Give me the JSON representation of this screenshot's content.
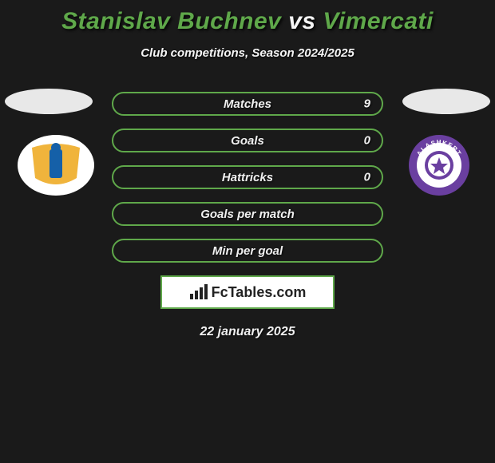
{
  "title": {
    "player1": "Stanislav Buchnev",
    "vs": "vs",
    "player2": "Vimercati",
    "color_player1": "#5fa84a",
    "color_vs": "#f5f5f5",
    "color_player2": "#5fa84a",
    "fontsize": 30
  },
  "subtitle": "Club competitions, Season 2024/2025",
  "stats": {
    "border_color": "#5fa84a",
    "rows": [
      {
        "label": "Matches",
        "left": "",
        "right": "9"
      },
      {
        "label": "Goals",
        "left": "",
        "right": "0"
      },
      {
        "label": "Hattricks",
        "left": "",
        "right": "0"
      },
      {
        "label": "Goals per match",
        "left": "",
        "right": ""
      },
      {
        "label": "Min per goal",
        "left": "",
        "right": ""
      }
    ]
  },
  "crest_left": {
    "bg": "#ffffff",
    "accent1": "#f0b43c",
    "accent2": "#1560a8"
  },
  "crest_right": {
    "ring": "#6a3fa0",
    "inner": "#ffffff",
    "text": "ALASHKERT"
  },
  "logo": {
    "border_color": "#5fa84a",
    "text": "FcTables.com",
    "icon_color": "#222222"
  },
  "date": "22 january 2025",
  "colors": {
    "page_bg": "#1a1a1a",
    "ellipse": "#e8e8e8",
    "text": "#f0f0f0"
  }
}
